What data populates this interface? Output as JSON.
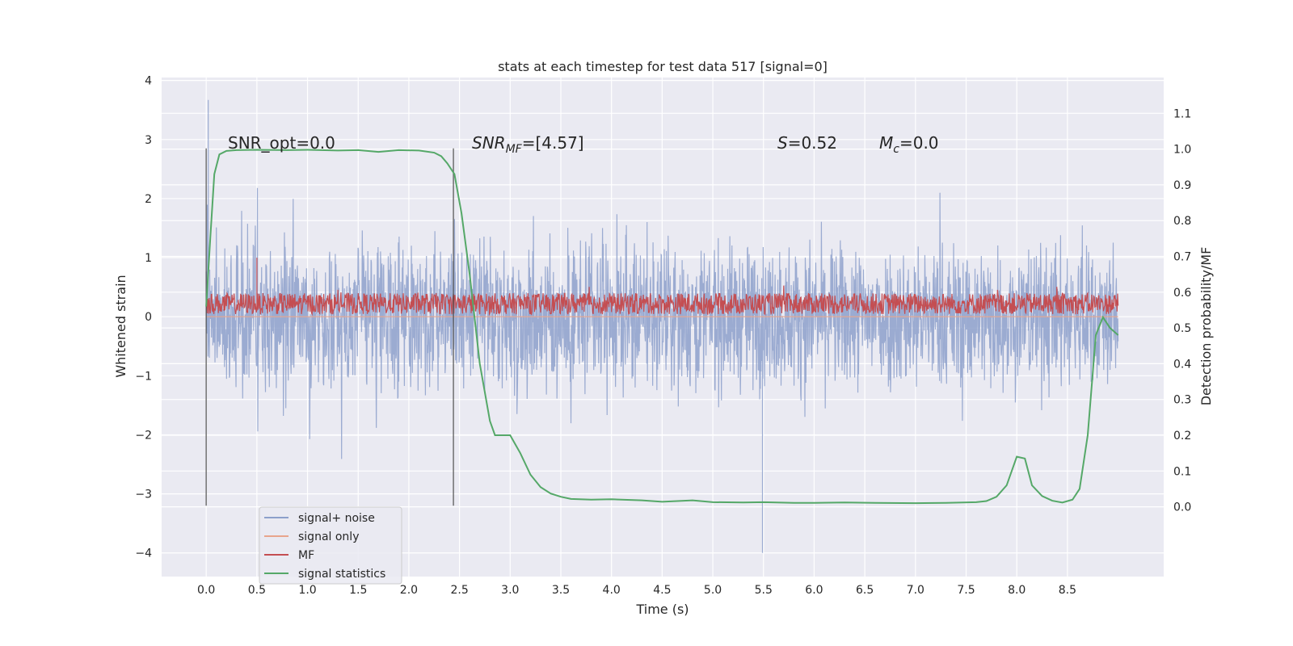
{
  "chart_data": {
    "type": "line",
    "title": "stats at each timestep for test data 517 [signal=0]",
    "xlabel": "Time (s)",
    "ylabel": "Whitened strain",
    "y2label": "Detection probability/MF",
    "xlim": [
      -0.44,
      9.45
    ],
    "ylim": [
      -4.4,
      4.05
    ],
    "y2lim": [
      -0.195,
      1.2
    ],
    "xticks": [
      0.0,
      0.5,
      1.0,
      1.5,
      2.0,
      2.5,
      3.0,
      3.5,
      4.0,
      4.5,
      5.0,
      5.5,
      6.0,
      6.5,
      7.0,
      7.5,
      8.0,
      8.5
    ],
    "xtick_labels": [
      "0.0",
      "0.5",
      "1.0",
      "1.5",
      "2.0",
      "2.5",
      "3.0",
      "3.5",
      "4.0",
      "4.5",
      "5.0",
      "5.5",
      "6.0",
      "6.5",
      "7.0",
      "7.5",
      "8.0",
      "8.5"
    ],
    "yticks": [
      -4,
      -3,
      -2,
      -1,
      0,
      1,
      2,
      3,
      4
    ],
    "ytick_labels": [
      "−4",
      "−3",
      "−2",
      "−1",
      "0",
      "1",
      "2",
      "3",
      "4"
    ],
    "y2ticks": [
      0.0,
      0.1,
      0.2,
      0.3,
      0.4,
      0.5,
      0.6,
      0.7,
      0.8,
      0.9,
      1.0,
      1.1
    ],
    "y2tick_labels": [
      "0.0",
      "0.1",
      "0.2",
      "0.3",
      "0.4",
      "0.5",
      "0.6",
      "0.7",
      "0.8",
      "0.9",
      "1.0",
      "1.1"
    ],
    "grid": true,
    "legend_position": "lower-left",
    "series": [
      {
        "name": "signal+ noise",
        "color": "#8da0cb",
        "x_range": [
          0.0,
          9.0
        ],
        "typical_range": [
          -1.9,
          2.0
        ],
        "peaks": [
          3.67,
          -4.0
        ]
      },
      {
        "name": "signal only",
        "color": "#e8a58c",
        "x_range": [
          0.0,
          9.0
        ],
        "values_constant": 0.0
      },
      {
        "name": "MF",
        "color": "#c44e52",
        "x_range": [
          0.0,
          9.0
        ],
        "typical_range": [
          0.0,
          0.45
        ],
        "peaks": [
          1.0
        ]
      },
      {
        "name": "signal statistics",
        "color": "#55a868",
        "axis": "right",
        "x": [
          0.0,
          0.04,
          0.08,
          0.13,
          0.2,
          0.3,
          0.5,
          0.8,
          1.0,
          1.3,
          1.5,
          1.7,
          1.9,
          2.1,
          2.25,
          2.32,
          2.38,
          2.45,
          2.52,
          2.6,
          2.7,
          2.8,
          2.85,
          2.95,
          3.0,
          3.1,
          3.2,
          3.3,
          3.4,
          3.5,
          3.6,
          3.8,
          4.0,
          4.3,
          4.5,
          4.8,
          5.0,
          5.3,
          5.5,
          5.8,
          6.0,
          6.3,
          6.6,
          7.0,
          7.3,
          7.6,
          7.7,
          7.8,
          7.9,
          8.0,
          8.08,
          8.15,
          8.25,
          8.35,
          8.45,
          8.55,
          8.62,
          8.7,
          8.78,
          8.85,
          8.92,
          9.0
        ],
        "values": [
          0.56,
          0.75,
          0.93,
          0.985,
          0.995,
          0.997,
          0.998,
          0.997,
          0.998,
          0.996,
          0.997,
          0.992,
          0.997,
          0.996,
          0.99,
          0.98,
          0.96,
          0.93,
          0.82,
          0.65,
          0.4,
          0.24,
          0.2,
          0.2,
          0.2,
          0.15,
          0.09,
          0.055,
          0.037,
          0.028,
          0.022,
          0.02,
          0.021,
          0.018,
          0.014,
          0.018,
          0.013,
          0.012,
          0.013,
          0.011,
          0.011,
          0.012,
          0.011,
          0.01,
          0.011,
          0.013,
          0.016,
          0.028,
          0.06,
          0.14,
          0.135,
          0.06,
          0.03,
          0.017,
          0.012,
          0.02,
          0.05,
          0.2,
          0.48,
          0.53,
          0.5,
          0.48
        ]
      }
    ],
    "vlines": [
      0.0,
      2.44
    ],
    "vline_ylim": [
      -3.2,
      2.85
    ],
    "annotations": {
      "snr_opt": "SNR_opt=0.0",
      "snr_mf_label": "SNR",
      "snr_mf_sub": "MF",
      "snr_mf_value": "=[4.57]",
      "s_label": "S",
      "s_value": "=0.52",
      "mc_label": "M",
      "mc_sub": "c",
      "mc_value": "=0.0"
    }
  }
}
